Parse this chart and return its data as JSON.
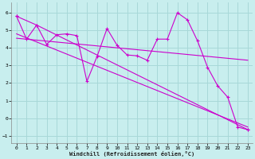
{
  "xlabel": "Windchill (Refroidissement éolien,°C)",
  "bg_color": "#c8eeee",
  "grid_color": "#a8d8d8",
  "line_color": "#cc00cc",
  "xlim": [
    -0.5,
    23.5
  ],
  "ylim": [
    -1.4,
    6.6
  ],
  "yticks": [
    -1,
    0,
    1,
    2,
    3,
    4,
    5,
    6
  ],
  "xticks": [
    0,
    1,
    2,
    3,
    4,
    5,
    6,
    7,
    8,
    9,
    10,
    11,
    12,
    13,
    14,
    15,
    16,
    17,
    18,
    19,
    20,
    21,
    22,
    23
  ],
  "series1_x": [
    0,
    1,
    2,
    3,
    4,
    5,
    6,
    7,
    8,
    9,
    10,
    11,
    12,
    13,
    14,
    15,
    16,
    17,
    18,
    19,
    20,
    21,
    22,
    23
  ],
  "series1_y": [
    5.8,
    4.5,
    5.3,
    4.2,
    4.75,
    4.8,
    4.7,
    2.1,
    3.5,
    5.1,
    4.15,
    3.6,
    3.55,
    3.3,
    4.5,
    4.5,
    6.0,
    5.6,
    4.4,
    2.9,
    1.85,
    1.2,
    -0.5,
    -0.65
  ],
  "series2_x": [
    0,
    2,
    23
  ],
  "series2_y": [
    5.8,
    5.3,
    -0.65
  ],
  "series3_x": [
    0,
    23
  ],
  "series3_y": [
    4.8,
    -0.5
  ],
  "series4_x": [
    0,
    23
  ],
  "series4_y": [
    4.55,
    3.3
  ]
}
